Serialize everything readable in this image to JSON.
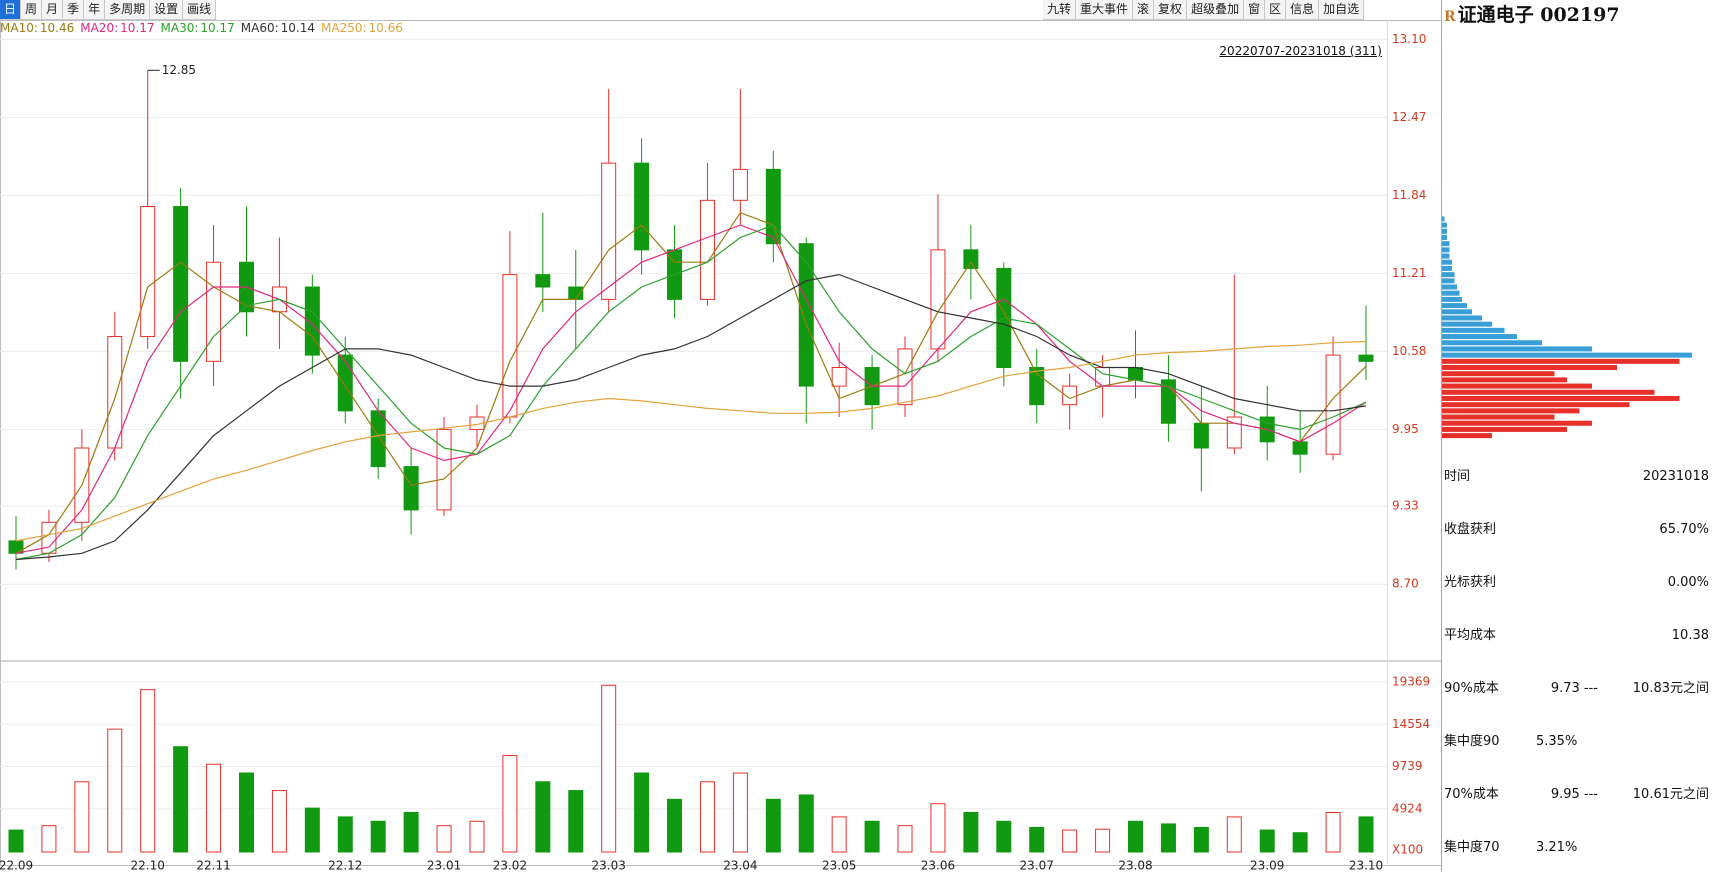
{
  "toolbar": {
    "periods": [
      "日",
      "周",
      "月",
      "季",
      "年",
      "多周期",
      "设置",
      "画线"
    ],
    "tools": [
      "九转",
      "重大事件",
      "滚",
      "复权",
      "超级叠加",
      "窗",
      "区",
      "信息",
      "加自选"
    ]
  },
  "chip_panel": {
    "badge": "R",
    "title": "证通电子 002197",
    "rows": [
      [
        "时间",
        "20231018"
      ],
      [
        "收盘获利",
        "65.70%"
      ],
      [
        "光标获利",
        "0.00%"
      ],
      [
        "平均成本",
        "10.38"
      ],
      [
        "90%成本",
        "9.73 ---",
        "10.83元之间"
      ],
      [
        "集中度90",
        "5.35%"
      ],
      [
        "70%成本",
        "9.95 ---",
        "10.61元之间"
      ],
      [
        "集中度70",
        "3.21%"
      ]
    ]
  },
  "chart_data": [
    {
      "type": "candlestick",
      "range_label": "20220707-20231018 (311)",
      "categories": [
        "22.09",
        null,
        null,
        null,
        "22.10",
        null,
        "22.11",
        null,
        null,
        null,
        "22.12",
        null,
        null,
        "23.01",
        null,
        "23.02",
        null,
        null,
        "23.03",
        null,
        null,
        null,
        "23.04",
        null,
        null,
        "23.05",
        null,
        null,
        "23.06",
        null,
        null,
        "23.07",
        null,
        null,
        "23.08",
        null,
        null,
        null,
        "23.09",
        null,
        null,
        "23.10"
      ],
      "open": [
        9.05,
        8.95,
        9.2,
        9.8,
        10.7,
        11.75,
        10.5,
        11.3,
        10.9,
        11.1,
        10.55,
        10.1,
        9.65,
        9.3,
        9.95,
        10.05,
        11.2,
        11.1,
        11.0,
        12.1,
        11.4,
        11.0,
        11.8,
        12.05,
        11.45,
        10.3,
        10.45,
        10.15,
        10.6,
        11.4,
        11.25,
        10.45,
        10.15,
        10.3,
        10.45,
        10.35,
        10.0,
        9.8,
        10.05,
        9.85,
        9.75,
        10.55
      ],
      "high": [
        9.25,
        9.3,
        9.95,
        10.9,
        12.85,
        11.9,
        11.6,
        11.75,
        11.5,
        11.2,
        10.7,
        10.2,
        9.8,
        10.05,
        10.15,
        11.55,
        11.7,
        11.4,
        12.7,
        12.3,
        11.6,
        12.1,
        12.7,
        12.2,
        11.5,
        10.65,
        10.55,
        10.7,
        11.85,
        11.6,
        11.3,
        10.6,
        10.4,
        10.55,
        10.75,
        10.55,
        10.3,
        11.2,
        10.3,
        10.1,
        10.7,
        10.95
      ],
      "low": [
        8.82,
        8.88,
        9.05,
        9.7,
        10.6,
        10.2,
        10.3,
        10.7,
        10.6,
        10.4,
        10.0,
        9.55,
        9.1,
        9.25,
        9.8,
        10.0,
        10.9,
        10.6,
        10.9,
        11.2,
        10.85,
        10.95,
        11.6,
        11.3,
        10.0,
        10.05,
        9.95,
        10.05,
        10.5,
        11.0,
        10.3,
        10.0,
        9.95,
        10.05,
        10.2,
        9.85,
        9.45,
        9.75,
        9.7,
        9.6,
        9.7,
        10.35
      ],
      "close": [
        8.95,
        9.2,
        9.8,
        10.7,
        11.75,
        10.5,
        11.3,
        10.9,
        11.1,
        10.55,
        10.1,
        9.65,
        9.3,
        9.95,
        10.05,
        11.2,
        11.1,
        11.0,
        12.1,
        11.4,
        11.0,
        11.8,
        12.05,
        11.45,
        10.3,
        10.45,
        10.15,
        10.6,
        11.4,
        11.25,
        10.45,
        10.15,
        10.3,
        10.45,
        10.35,
        10.0,
        9.8,
        10.05,
        9.85,
        9.75,
        10.55,
        10.5
      ],
      "up_color": "#e8302a",
      "down_color": "#119911",
      "series": [
        {
          "name": "MA10",
          "color": "#9a7a10",
          "values": [
            8.95,
            9.1,
            9.5,
            10.2,
            11.1,
            11.3,
            11.1,
            10.95,
            10.9,
            10.7,
            10.3,
            9.9,
            9.5,
            9.55,
            9.8,
            10.5,
            11.0,
            11.0,
            11.4,
            11.6,
            11.3,
            11.3,
            11.7,
            11.6,
            10.8,
            10.2,
            10.3,
            10.4,
            10.9,
            11.3,
            10.9,
            10.4,
            10.2,
            10.3,
            10.35,
            10.3,
            10.0,
            10.0,
            9.95,
            9.85,
            10.2,
            10.46
          ]
        },
        {
          "name": "MA20",
          "color": "#e0287f",
          "values": [
            8.95,
            9.0,
            9.3,
            9.8,
            10.5,
            10.9,
            11.1,
            11.1,
            11.0,
            10.8,
            10.5,
            10.1,
            9.8,
            9.7,
            9.75,
            10.1,
            10.6,
            10.9,
            11.1,
            11.3,
            11.4,
            11.5,
            11.6,
            11.5,
            11.0,
            10.5,
            10.3,
            10.3,
            10.6,
            10.9,
            11.0,
            10.8,
            10.5,
            10.3,
            10.3,
            10.3,
            10.1,
            10.0,
            9.95,
            9.85,
            10.0,
            10.17
          ]
        },
        {
          "name": "MA30",
          "color": "#2ca02c",
          "values": [
            8.9,
            8.95,
            9.1,
            9.4,
            9.9,
            10.3,
            10.7,
            10.95,
            11.0,
            10.9,
            10.6,
            10.3,
            10.0,
            9.8,
            9.75,
            9.9,
            10.3,
            10.6,
            10.9,
            11.1,
            11.2,
            11.3,
            11.5,
            11.6,
            11.3,
            10.9,
            10.6,
            10.4,
            10.5,
            10.7,
            10.85,
            10.8,
            10.6,
            10.4,
            10.35,
            10.3,
            10.2,
            10.1,
            10.0,
            9.95,
            10.05,
            10.17
          ]
        },
        {
          "name": "MA60",
          "color": "#333333",
          "values": [
            8.9,
            8.92,
            8.95,
            9.05,
            9.3,
            9.6,
            9.9,
            10.1,
            10.3,
            10.45,
            10.6,
            10.6,
            10.55,
            10.45,
            10.35,
            10.3,
            10.3,
            10.35,
            10.45,
            10.55,
            10.6,
            10.7,
            10.85,
            11.0,
            11.15,
            11.2,
            11.1,
            11.0,
            10.9,
            10.85,
            10.8,
            10.7,
            10.55,
            10.45,
            10.45,
            10.4,
            10.3,
            10.2,
            10.15,
            10.1,
            10.1,
            10.14
          ]
        },
        {
          "name": "MA250",
          "color": "#e3a23c",
          "values": [
            9.05,
            9.1,
            9.15,
            9.25,
            9.35,
            9.45,
            9.55,
            9.62,
            9.7,
            9.78,
            9.85,
            9.9,
            9.93,
            9.96,
            9.99,
            10.05,
            10.12,
            10.17,
            10.2,
            10.18,
            10.15,
            10.12,
            10.1,
            10.08,
            10.08,
            10.09,
            10.12,
            10.17,
            10.22,
            10.3,
            10.38,
            10.42,
            10.45,
            10.5,
            10.55,
            10.57,
            10.58,
            10.6,
            10.62,
            10.63,
            10.65,
            10.66
          ]
        }
      ],
      "ylim": [
        8.08,
        13.24
      ],
      "yticks": [
        {
          "value": 13.1,
          "label": "13.10"
        },
        12.47,
        11.84,
        11.21,
        10.58,
        9.95,
        9.33,
        {
          "value": 8.7,
          "label": "8.70"
        }
      ],
      "grid": true
    },
    {
      "type": "bar",
      "values": [
        2500,
        3000,
        8000,
        14000,
        18500,
        12000,
        10000,
        9000,
        7000,
        5000,
        4000,
        3500,
        4500,
        3000,
        3500,
        11000,
        8000,
        7000,
        19000,
        9000,
        6000,
        8000,
        9000,
        6000,
        6500,
        4000,
        3500,
        3000,
        5500,
        4500,
        3500,
        2800,
        2500,
        2600,
        3500,
        3200,
        2800,
        4000,
        2500,
        2200,
        4500,
        4000
      ],
      "ylim": [
        0,
        21763
      ],
      "yticks": [
        19369,
        14554,
        9739,
        4924
      ],
      "unit_label": "X100",
      "grid": true
    },
    {
      "type": "chip_distribution",
      "prices": [
        9.9,
        9.95,
        10.0,
        10.05,
        10.1,
        10.15,
        10.2,
        10.25,
        10.3,
        10.35,
        10.4,
        10.45,
        10.5,
        10.55,
        10.6,
        10.65,
        10.7,
        10.75,
        10.8,
        10.85,
        10.9,
        10.95,
        11.0,
        11.05,
        11.1,
        11.15,
        11.2,
        11.25,
        11.3,
        11.35,
        11.4,
        11.45,
        11.5,
        11.55,
        11.6,
        11.65
      ],
      "values": [
        20,
        50,
        60,
        45,
        55,
        75,
        95,
        85,
        60,
        50,
        45,
        70,
        95,
        100,
        60,
        40,
        30,
        25,
        20,
        16,
        12,
        10,
        8,
        7,
        6,
        5,
        5,
        4,
        4,
        3,
        3,
        3,
        2,
        2,
        2,
        1
      ],
      "profit_color": "#e8302a",
      "loss_color": "#3a9fd6"
    }
  ]
}
